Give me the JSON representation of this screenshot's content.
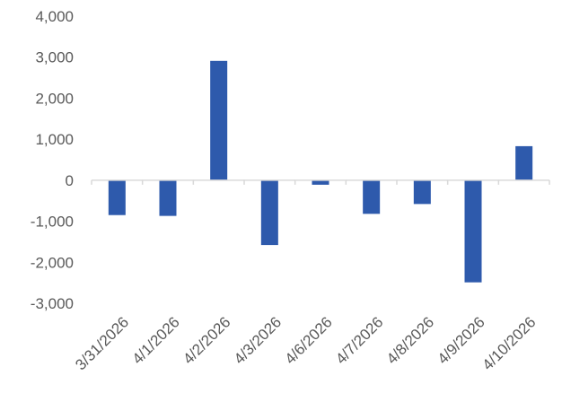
{
  "chart_data": {
    "type": "bar",
    "title": "",
    "xlabel": "",
    "ylabel": "",
    "categories": [
      "3/31/2026",
      "4/1/2026",
      "4/2/2026",
      "4/3/2026",
      "4/6/2026",
      "4/7/2026",
      "4/8/2026",
      "4/9/2026",
      "4/10/2026"
    ],
    "series": [
      {
        "values": [
          -850,
          -870,
          2910,
          -1580,
          -110,
          -820,
          -580,
          -2490,
          830
        ]
      }
    ],
    "ylim": [
      -3000,
      4000
    ],
    "yticks": [
      4000,
      3000,
      2000,
      1000,
      0,
      -1000,
      -2000,
      -3000
    ],
    "ytick_labels": [
      "4,000",
      "3,000",
      "2,000",
      "1,000",
      "0",
      "-1,000",
      "-2,000",
      "-3,000"
    ],
    "grid": false,
    "legend": "none",
    "bar_color": "#2E5AAC",
    "axis_color": "#D9D9D9"
  }
}
